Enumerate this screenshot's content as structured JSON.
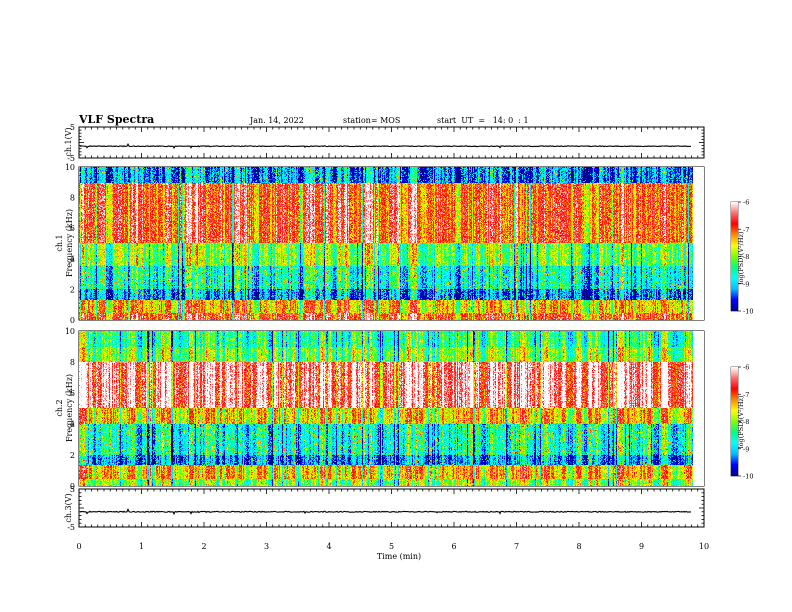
{
  "header": {
    "title": "VLF Spectra",
    "date": "Jan. 14, 2022",
    "station": "station= MOS",
    "start": "start  UT  =   14: 0  : 1"
  },
  "colors": {
    "spectrum_scale": [
      "#00008b",
      "#0000ff",
      "#00bfff",
      "#00ffff",
      "#00ff7f",
      "#7fff00",
      "#ffff00",
      "#ff8c00",
      "#ff0000",
      "#ff6a6a",
      "#ffffff"
    ]
  },
  "chart_data": [
    {
      "type": "line",
      "panel": "ch1-voltage",
      "ylabel": "ch.1(V)",
      "ylim": [
        -5,
        5
      ],
      "y_ticks": [
        "5",
        "-5"
      ],
      "xlim": [
        0,
        10
      ],
      "series": [
        {
          "values_approx_constant": -1.2
        }
      ]
    },
    {
      "type": "heatmap",
      "panel": "ch1-spectrogram",
      "ylabel": "ch.1\nFrequency (kHz)",
      "ylim": [
        0,
        10
      ],
      "y_ticks": [
        "0",
        "2",
        "4",
        "6",
        "8",
        "10"
      ],
      "xlim": [
        0,
        9.83
      ],
      "colorbar": {
        "label": "log(PSD)(V²/Hz)",
        "range": [
          -10,
          -6
        ],
        "ticks": [
          "-6",
          "-7",
          "-8",
          "-9",
          "-10"
        ]
      },
      "bands": [
        {
          "freq_khz": [
            0.0,
            0.4
          ],
          "level": "high"
        },
        {
          "freq_khz": [
            0.4,
            1.3
          ],
          "level": "high-mixed"
        },
        {
          "freq_khz": [
            1.3,
            2.0
          ],
          "level": "low"
        },
        {
          "freq_khz": [
            2.0,
            3.5
          ],
          "level": "low-mixed"
        },
        {
          "freq_khz": [
            3.5,
            5.0
          ],
          "level": "medium"
        },
        {
          "freq_khz": [
            5.0,
            9.0
          ],
          "level": "high"
        },
        {
          "freq_khz": [
            9.0,
            10.0
          ],
          "level": "low"
        }
      ]
    },
    {
      "type": "heatmap",
      "panel": "ch2-spectrogram",
      "ylabel": "ch.2\nFrequency (kHz)",
      "ylim": [
        0,
        10
      ],
      "y_ticks": [
        "0",
        "2",
        "4",
        "6",
        "8",
        "10"
      ],
      "xlim": [
        0,
        9.83
      ],
      "colorbar": {
        "label": "log(PSD)(V²/Hz)",
        "range": [
          -10,
          -6
        ],
        "ticks": [
          "-6",
          "-7",
          "-8",
          "-9",
          "-10"
        ]
      },
      "bands": [
        {
          "freq_khz": [
            0.0,
            0.4
          ],
          "level": "medium"
        },
        {
          "freq_khz": [
            0.4,
            1.3
          ],
          "level": "high-mixed"
        },
        {
          "freq_khz": [
            1.3,
            2.0
          ],
          "level": "low"
        },
        {
          "freq_khz": [
            2.0,
            4.0
          ],
          "level": "low-mixed"
        },
        {
          "freq_khz": [
            4.0,
            5.0
          ],
          "level": "medium-high"
        },
        {
          "freq_khz": [
            5.0,
            8.0
          ],
          "level": "very-high"
        },
        {
          "freq_khz": [
            8.0,
            9.0
          ],
          "level": "medium"
        },
        {
          "freq_khz": [
            9.0,
            10.0
          ],
          "level": "medium-low"
        }
      ]
    },
    {
      "type": "line",
      "panel": "ch3-voltage",
      "ylabel": "ch.3(V)",
      "ylim": [
        -5,
        5
      ],
      "y_ticks": [
        "5",
        "-5"
      ],
      "xlim": [
        0,
        10
      ],
      "series": [
        {
          "values_approx_constant": -1.0
        }
      ]
    }
  ],
  "x_axis": {
    "label": "Time (min)",
    "ticks": [
      "0",
      "1",
      "2",
      "3",
      "4",
      "5",
      "6",
      "7",
      "8",
      "9",
      "10"
    ],
    "range": [
      0,
      10
    ]
  }
}
